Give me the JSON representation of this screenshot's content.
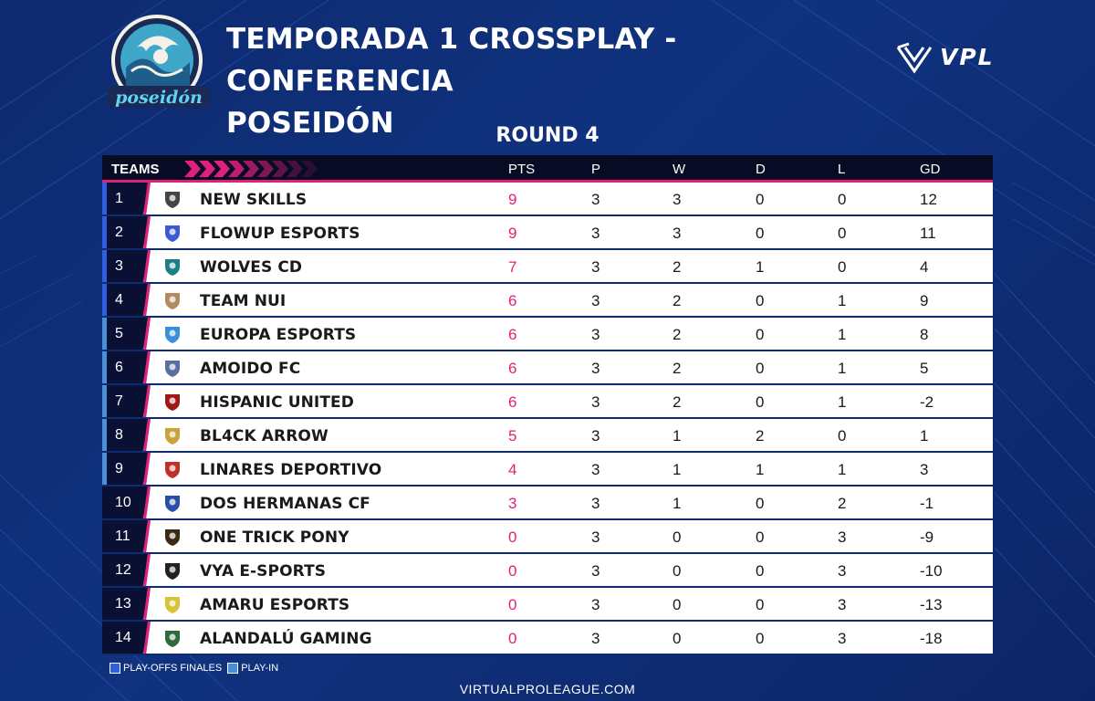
{
  "header": {
    "title_line1": "TEMPORADA 1 CROSSPLAY - CONFERENCIA",
    "title_line2": "POSEIDÓN",
    "logo_text": "poseidón",
    "brand": "VPL",
    "round": "ROUND 4"
  },
  "table": {
    "headers": {
      "teams": "TEAMS",
      "pts": "PTS",
      "p": "P",
      "w": "W",
      "d": "D",
      "l": "L",
      "gd": "GD"
    },
    "rows": [
      {
        "pos": "1",
        "team": "NEW SKILLS",
        "pts": "9",
        "p": "3",
        "w": "3",
        "d": "0",
        "l": "0",
        "gd": "12",
        "zone": "playoffs",
        "logo_icon": "new-skills-shield-icon"
      },
      {
        "pos": "2",
        "team": "FLOWUP ESPORTS",
        "pts": "9",
        "p": "3",
        "w": "3",
        "d": "0",
        "l": "0",
        "gd": "11",
        "zone": "playoffs",
        "logo_icon": "flowup-crest-icon"
      },
      {
        "pos": "3",
        "team": "WOLVES CD",
        "pts": "7",
        "p": "3",
        "w": "2",
        "d": "1",
        "l": "0",
        "gd": "4",
        "zone": "playoffs",
        "logo_icon": "wolves-round-icon"
      },
      {
        "pos": "4",
        "team": "TEAM NUI",
        "pts": "6",
        "p": "3",
        "w": "2",
        "d": "0",
        "l": "1",
        "gd": "9",
        "zone": "playoffs",
        "logo_icon": "team-nui-shield-icon"
      },
      {
        "pos": "5",
        "team": "EUROPA ESPORTS",
        "pts": "6",
        "p": "3",
        "w": "2",
        "d": "0",
        "l": "1",
        "gd": "8",
        "zone": "playin",
        "logo_icon": "europa-wave-icon"
      },
      {
        "pos": "6",
        "team": "AMOIDO FC",
        "pts": "6",
        "p": "3",
        "w": "2",
        "d": "0",
        "l": "1",
        "gd": "5",
        "zone": "playin",
        "logo_icon": "amoido-wings-icon"
      },
      {
        "pos": "7",
        "team": "HISPANIC UNITED",
        "pts": "6",
        "p": "3",
        "w": "2",
        "d": "0",
        "l": "1",
        "gd": "-2",
        "zone": "playin",
        "logo_icon": "hispanic-united-shield-icon"
      },
      {
        "pos": "8",
        "team": "BL4CK ARROW",
        "pts": "5",
        "p": "3",
        "w": "1",
        "d": "2",
        "l": "0",
        "gd": "1",
        "zone": "playin",
        "logo_icon": "black-arrow-icon"
      },
      {
        "pos": "9",
        "team": "LINARES DEPORTIVO",
        "pts": "4",
        "p": "3",
        "w": "1",
        "d": "1",
        "l": "1",
        "gd": "3",
        "zone": "playin",
        "logo_icon": "linares-crest-icon"
      },
      {
        "pos": "10",
        "team": "DOS HERMANAS CF",
        "pts": "3",
        "p": "3",
        "w": "1",
        "d": "0",
        "l": "2",
        "gd": "-1",
        "zone": "none",
        "logo_icon": "dos-hermanas-shield-icon"
      },
      {
        "pos": "11",
        "team": "ONE TRICK PONY",
        "pts": "0",
        "p": "3",
        "w": "0",
        "d": "0",
        "l": "3",
        "gd": "-9",
        "zone": "none",
        "logo_icon": "one-trick-pony-badge-icon"
      },
      {
        "pos": "12",
        "team": "VYA E-SPORTS",
        "pts": "0",
        "p": "3",
        "w": "0",
        "d": "0",
        "l": "3",
        "gd": "-10",
        "zone": "none",
        "logo_icon": "vya-bear-icon"
      },
      {
        "pos": "13",
        "team": "AMARU ESPORTS",
        "pts": "0",
        "p": "3",
        "w": "0",
        "d": "0",
        "l": "3",
        "gd": "-13",
        "zone": "none",
        "logo_icon": "amaru-square-icon"
      },
      {
        "pos": "14",
        "team": "ALANDALÚ GAMING",
        "pts": "0",
        "p": "3",
        "w": "0",
        "d": "0",
        "l": "3",
        "gd": "-18",
        "zone": "none",
        "logo_icon": "alandalu-crest-icon"
      }
    ]
  },
  "legend": {
    "playoffs_label": "PLAY-OFFS FINALES",
    "playin_label": "PLAY-IN"
  },
  "footer": {
    "site": "VIRTUALPROLEAGUE.COM"
  },
  "colors": {
    "background": "#10327f",
    "header_bar": "#070c24",
    "accent_pink": "#e0207a",
    "playoffs_blue": "#2f5fe0",
    "playin_blue": "#4a90d8",
    "row_bg": "#ffffff"
  }
}
